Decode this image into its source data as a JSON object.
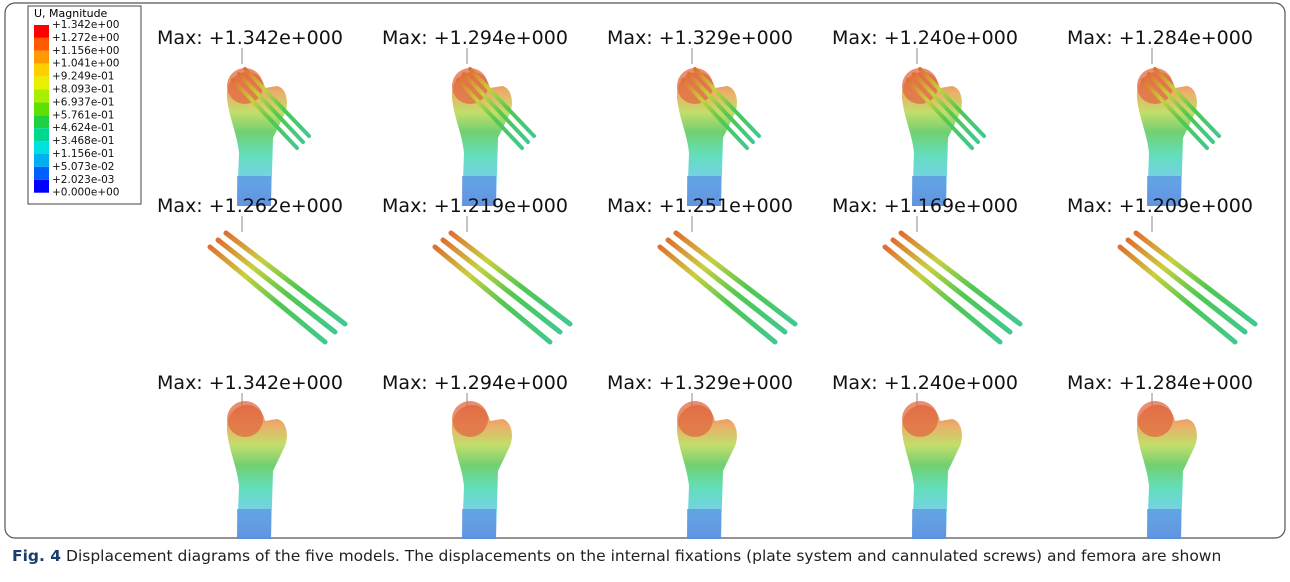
{
  "figure": {
    "legend": {
      "title": "U, Magnitude",
      "levels": [
        "+1.342e+00",
        "+1.272e+00",
        "+1.156e+00",
        "+1.041e+00",
        "+9.249e-01",
        "+8.093e-01",
        "+6.937e-01",
        "+5.761e-01",
        "+4.624e-01",
        "+3.468e-01",
        "+1.156e-01",
        "+5.073e-02",
        "+2.023e-03",
        "+0.000e+00"
      ]
    },
    "panels": [
      [
        "Max: +1.342e+000",
        "Max: +1.294e+000",
        "Max: +1.329e+000",
        "Max: +1.240e+000",
        "Max: +1.284e+000"
      ],
      [
        "Max: +1.262e+000",
        "Max: +1.219e+000",
        "Max: +1.251e+000",
        "Max: +1.169e+000",
        "Max: +1.209e+000"
      ],
      [
        "Max: +1.342e+000",
        "Max: +1.294e+000",
        "Max: +1.329e+000",
        "Max: +1.240e+000",
        "Max: +1.284e+000"
      ]
    ]
  },
  "caption": {
    "label": "Fig. 4",
    "text": "Displacement diagrams of the five models. The displacements on the internal fixations (plate system and cannulated screws) and femora are shown"
  }
}
